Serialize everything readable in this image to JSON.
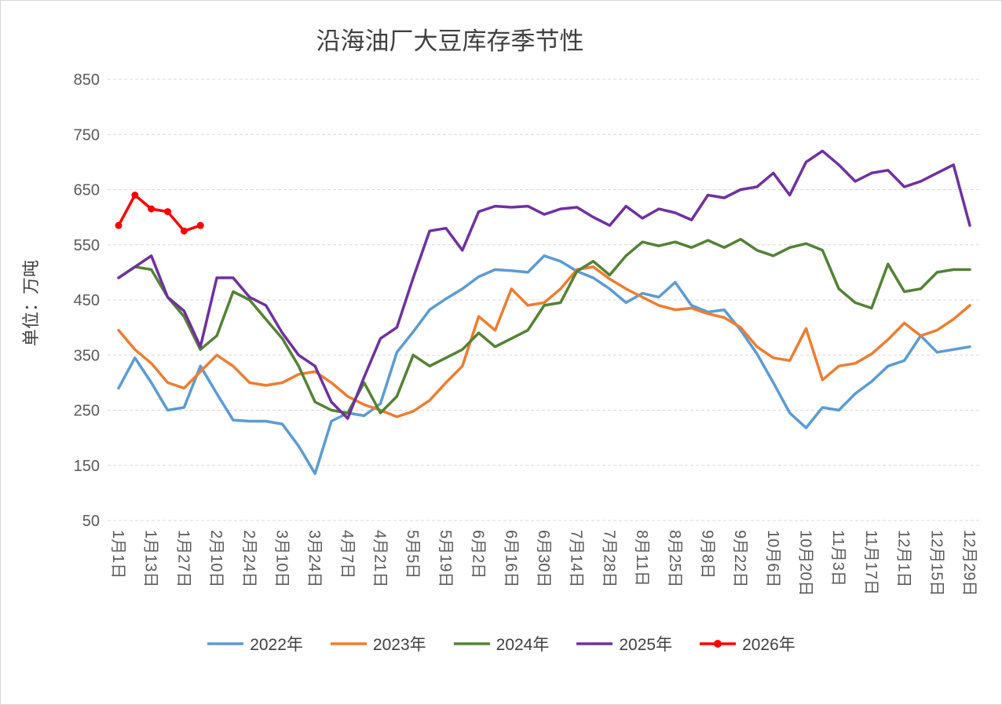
{
  "frame": {
    "background_color": "#ffffff",
    "border_color": "#d6d6d6"
  },
  "chart_data": {
    "type": "line",
    "title": "沿海油厂大豆库存季节性",
    "ylabel": "单位：万吨",
    "xlabel": "",
    "ylim": [
      50,
      850
    ],
    "yticks": [
      850,
      750,
      650,
      550,
      450,
      350,
      250,
      150,
      50
    ],
    "grid": "horizontal-dashed",
    "grid_color": "#d9d9d9",
    "text_color": "#595959",
    "legend_position": "bottom",
    "x_points_per_label": 2,
    "categories": [
      "1月1日",
      "1月13日",
      "1月27日",
      "2月10日",
      "2月24日",
      "3月10日",
      "3月24日",
      "4月7日",
      "4月21日",
      "5月5日",
      "5月19日",
      "6月2日",
      "6月16日",
      "6月30日",
      "7月14日",
      "7月28日",
      "8月11日",
      "8月25日",
      "9月8日",
      "9月22日",
      "10月6日",
      "10月20日",
      "11月3日",
      "11月17日",
      "12月1日",
      "12月15日",
      "12月29日"
    ],
    "series": [
      {
        "name": "2022年",
        "color": "#5B9BD5",
        "marker": "none",
        "values": [
          290,
          345,
          300,
          250,
          255,
          330,
          280,
          232,
          230,
          230,
          225,
          185,
          135,
          230,
          245,
          240,
          262,
          355,
          392,
          432,
          452,
          470,
          492,
          505,
          503,
          500,
          530,
          520,
          502,
          490,
          470,
          445,
          462,
          455,
          482,
          440,
          428,
          432,
          395,
          352,
          300,
          245,
          218,
          255,
          250,
          280,
          302,
          330,
          340,
          385,
          355,
          360,
          365
        ]
      },
      {
        "name": "2023年",
        "color": "#ED7D31",
        "marker": "none",
        "values": [
          395,
          360,
          335,
          300,
          290,
          320,
          350,
          330,
          300,
          295,
          300,
          315,
          320,
          300,
          275,
          260,
          250,
          238,
          248,
          268,
          300,
          330,
          420,
          395,
          470,
          440,
          445,
          470,
          505,
          510,
          488,
          470,
          455,
          440,
          432,
          435,
          425,
          418,
          400,
          365,
          345,
          340,
          398,
          305,
          330,
          335,
          352,
          378,
          408,
          385,
          395,
          415,
          440
        ]
      },
      {
        "name": "2024年",
        "color": "#548235",
        "marker": "none",
        "values": [
          490,
          510,
          505,
          455,
          420,
          360,
          385,
          465,
          450,
          415,
          380,
          330,
          265,
          250,
          245,
          300,
          245,
          275,
          350,
          330,
          345,
          360,
          390,
          365,
          380,
          395,
          440,
          445,
          502,
          520,
          495,
          530,
          555,
          548,
          555,
          545,
          558,
          545,
          560,
          540,
          530,
          545,
          552,
          540,
          470,
          445,
          435,
          515,
          465,
          470,
          500,
          505,
          505
        ]
      },
      {
        "name": "2025年",
        "color": "#7030A0",
        "marker": "none",
        "values": [
          490,
          510,
          530,
          455,
          430,
          365,
          490,
          490,
          455,
          440,
          390,
          350,
          330,
          265,
          235,
          310,
          380,
          400,
          490,
          575,
          580,
          540,
          610,
          620,
          618,
          620,
          605,
          615,
          618,
          600,
          585,
          620,
          598,
          615,
          608,
          595,
          640,
          635,
          650,
          655,
          680,
          640,
          700,
          720,
          695,
          665,
          680,
          685,
          655,
          665,
          680,
          695,
          585
        ]
      },
      {
        "name": "2026年",
        "color": "#FF0000",
        "marker": "circle",
        "values": [
          585,
          640,
          615,
          610,
          575,
          585
        ]
      }
    ]
  }
}
